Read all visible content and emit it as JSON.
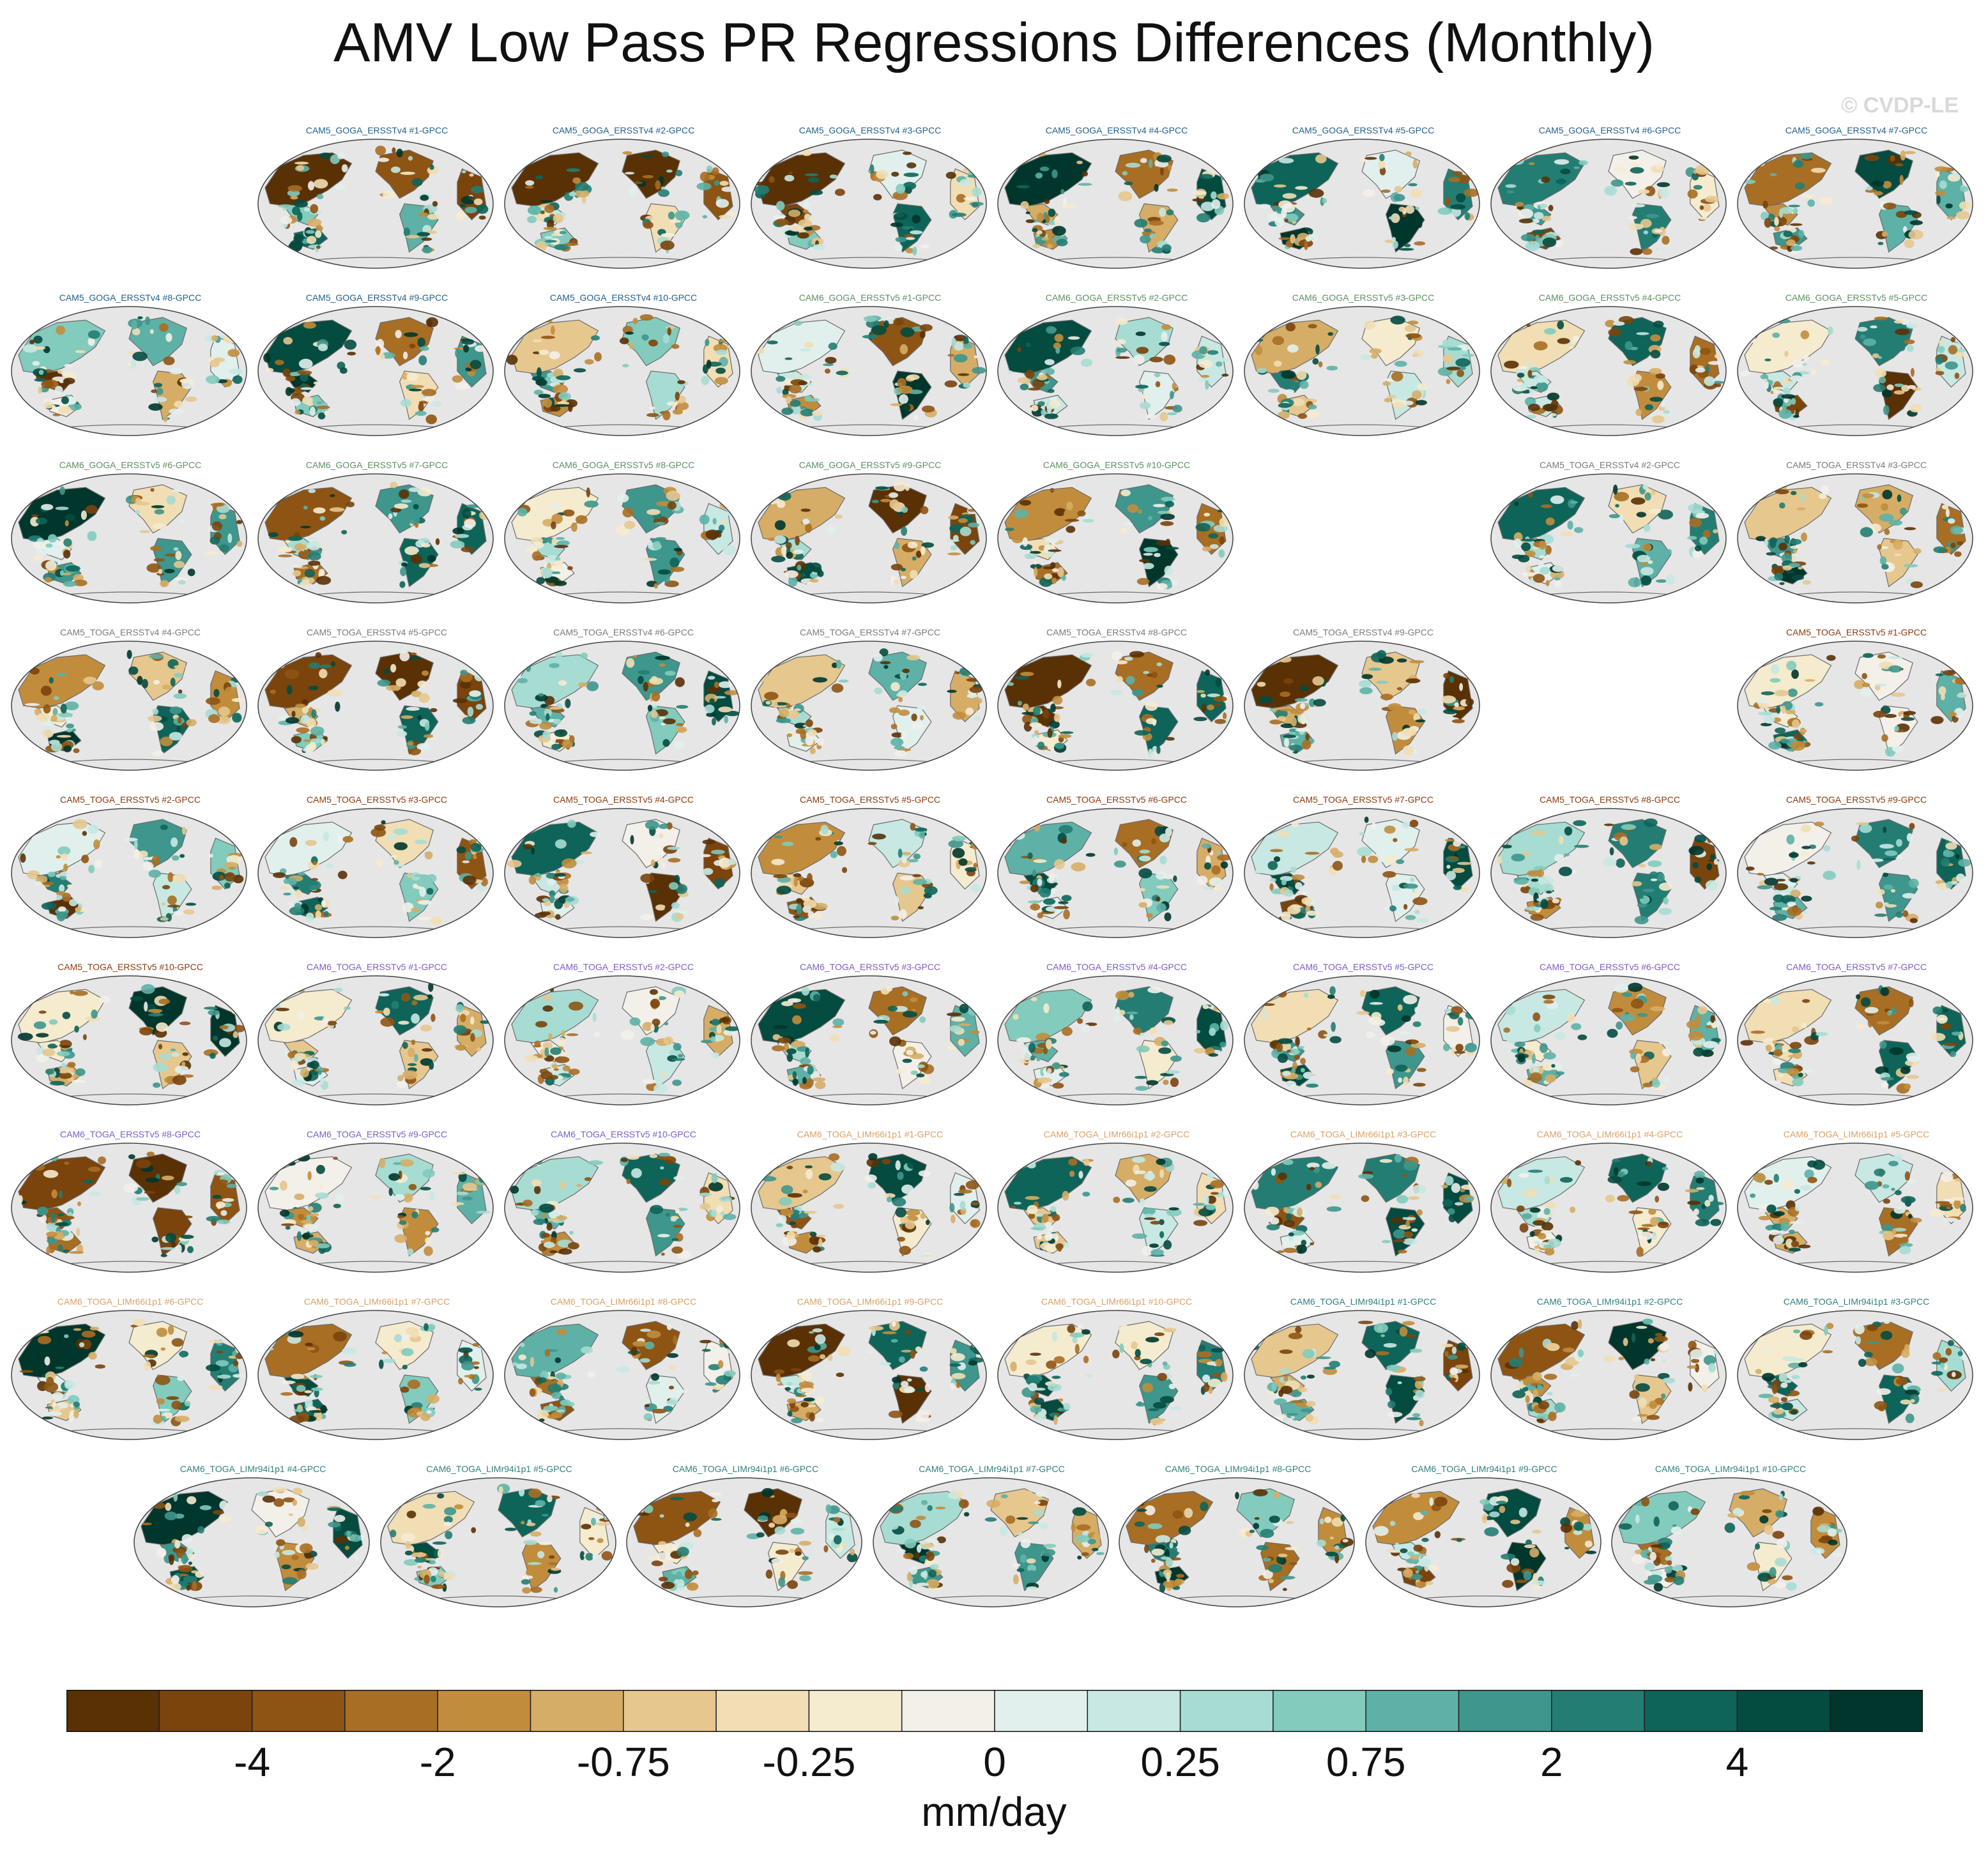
{
  "chart_data": {
    "type": "heatmap",
    "title": "AMV Low Pass PR Regressions Differences (Monthly)",
    "copyright": "© CVDP-LE",
    "units": "mm/day",
    "colorbar": {
      "colors": [
        "#5a3105",
        "#7a440c",
        "#8e5413",
        "#a86e24",
        "#c18d3d",
        "#d6ad66",
        "#e6c78e",
        "#f1deb4",
        "#f5ebcf",
        "#f3f0ea",
        "#e2f0ed",
        "#c8e8e3",
        "#a7dcd3",
        "#82cbbd",
        "#5eb1a6",
        "#3e968c",
        "#247d73",
        "#0e6458",
        "#044b40",
        "#00362c"
      ],
      "tick_labels": [
        "-4",
        "-2",
        "-0.75",
        "-0.25",
        "0",
        "0.25",
        "0.75",
        "2",
        "4"
      ]
    },
    "rows": [
      {
        "color": "#1f5f8b",
        "start": 1,
        "labels": [
          "CAM5_GOGA_ERSSTv4 #1-GPCC",
          "CAM5_GOGA_ERSSTv4 #2-GPCC",
          "CAM5_GOGA_ERSSTv4 #3-GPCC",
          "CAM5_GOGA_ERSSTv4 #4-GPCC",
          "CAM5_GOGA_ERSSTv4 #5-GPCC",
          "CAM5_GOGA_ERSSTv4 #6-GPCC",
          "CAM5_GOGA_ERSSTv4 #7-GPCC"
        ]
      },
      {
        "color": "#1f5f8b",
        "start": 0,
        "labels": [
          "CAM5_GOGA_ERSSTv4 #8-GPCC",
          "CAM5_GOGA_ERSSTv4 #9-GPCC",
          "CAM5_GOGA_ERSSTv4 #10-GPCC"
        ]
      },
      {
        "color": "#5d8f60",
        "start": 3,
        "labels": [
          "CAM6_GOGA_ERSSTv5 #1-GPCC",
          "CAM6_GOGA_ERSSTv5 #2-GPCC",
          "CAM6_GOGA_ERSSTv5 #3-GPCC",
          "CAM6_GOGA_ERSSTv5 #4-GPCC",
          "CAM6_GOGA_ERSSTv5 #5-GPCC"
        ]
      },
      {
        "color": "#5d8f60",
        "start": 0,
        "labels": [
          "CAM6_GOGA_ERSSTv5 #6-GPCC",
          "CAM6_GOGA_ERSSTv5 #7-GPCC",
          "CAM6_GOGA_ERSSTv5 #8-GPCC",
          "CAM6_GOGA_ERSSTv5 #9-GPCC",
          "CAM6_GOGA_ERSSTv5 #10-GPCC"
        ]
      },
      {
        "color": "#7a7a7a",
        "start": 6,
        "labels": [
          "CAM5_TOGA_ERSSTv4 #2-GPCC",
          "CAM5_TOGA_ERSSTv4 #3-GPCC"
        ]
      },
      {
        "color": "#7a7a7a",
        "start": 0,
        "labels": [
          "CAM5_TOGA_ERSSTv4 #4-GPCC",
          "CAM5_TOGA_ERSSTv4 #5-GPCC",
          "CAM5_TOGA_ERSSTv4 #6-GPCC",
          "CAM5_TOGA_ERSSTv4 #7-GPCC",
          "CAM5_TOGA_ERSSTv4 #8-GPCC",
          "CAM5_TOGA_ERSSTv4 #9-GPCC"
        ]
      },
      {
        "color": "#8b3a0e",
        "start": 7,
        "labels": [
          "CAM5_TOGA_ERSSTv5 #1-GPCC"
        ]
      },
      {
        "color": "#8b3a0e",
        "start": 0,
        "labels": [
          "CAM5_TOGA_ERSSTv5 #2-GPCC",
          "CAM5_TOGA_ERSSTv5 #3-GPCC",
          "CAM5_TOGA_ERSSTv5 #4-GPCC",
          "CAM5_TOGA_ERSSTv5 #5-GPCC",
          "CAM5_TOGA_ERSSTv5 #6-GPCC",
          "CAM5_TOGA_ERSSTv5 #7-GPCC",
          "CAM5_TOGA_ERSSTv5 #8-GPCC",
          "CAM5_TOGA_ERSSTv5 #9-GPCC"
        ]
      },
      {
        "color": "#8b3a0e",
        "start": 0,
        "labels": [
          "CAM5_TOGA_ERSSTv5 #10-GPCC"
        ]
      },
      {
        "color": "#7b5cc4",
        "start": 1,
        "labels": [
          "CAM6_TOGA_ERSSTv5 #1-GPCC",
          "CAM6_TOGA_ERSSTv5 #2-GPCC",
          "CAM6_TOGA_ERSSTv5 #3-GPCC",
          "CAM6_TOGA_ERSSTv5 #4-GPCC",
          "CAM6_TOGA_ERSSTv5 #5-GPCC",
          "CAM6_TOGA_ERSSTv5 #6-GPCC",
          "CAM6_TOGA_ERSSTv5 #7-GPCC"
        ]
      },
      {
        "color": "#7b5cc4",
        "start": 0,
        "labels": [
          "CAM6_TOGA_ERSSTv5 #8-GPCC",
          "CAM6_TOGA_ERSSTv5 #9-GPCC",
          "CAM6_TOGA_ERSSTv5 #10-GPCC"
        ]
      },
      {
        "color": "#d9a066",
        "start": 3,
        "labels": [
          "CAM6_TOGA_LIMr66i1p1 #1-GPCC",
          "CAM6_TOGA_LIMr66i1p1 #2-GPCC",
          "CAM6_TOGA_LIMr66i1p1 #3-GPCC",
          "CAM6_TOGA_LIMr66i1p1 #4-GPCC",
          "CAM6_TOGA_LIMr66i1p1 #5-GPCC"
        ]
      },
      {
        "color": "#d9a066",
        "start": 0,
        "labels": [
          "CAM6_TOGA_LIMr66i1p1 #6-GPCC",
          "CAM6_TOGA_LIMr66i1p1 #7-GPCC",
          "CAM6_TOGA_LIMr66i1p1 #8-GPCC",
          "CAM6_TOGA_LIMr66i1p1 #9-GPCC",
          "CAM6_TOGA_LIMr66i1p1 #10-GPCC"
        ]
      },
      {
        "color": "#2f7f7f",
        "start": 5,
        "labels": [
          "CAM6_TOGA_LIMr94i1p1 #1-GPCC",
          "CAM6_TOGA_LIMr94i1p1 #2-GPCC",
          "CAM6_TOGA_LIMr94i1p1 #3-GPCC"
        ]
      },
      {
        "color": "#2f7f7f",
        "start": 0,
        "labels": [
          "CAM6_TOGA_LIMr94i1p1 #4-GPCC",
          "CAM6_TOGA_LIMr94i1p1 #5-GPCC",
          "CAM6_TOGA_LIMr94i1p1 #6-GPCC",
          "CAM6_TOGA_LIMr94i1p1 #7-GPCC",
          "CAM6_TOGA_LIMr94i1p1 #8-GPCC",
          "CAM6_TOGA_LIMr94i1p1 #9-GPCC",
          "CAM6_TOGA_LIMr94i1p1 #10-GPCC"
        ]
      }
    ]
  }
}
